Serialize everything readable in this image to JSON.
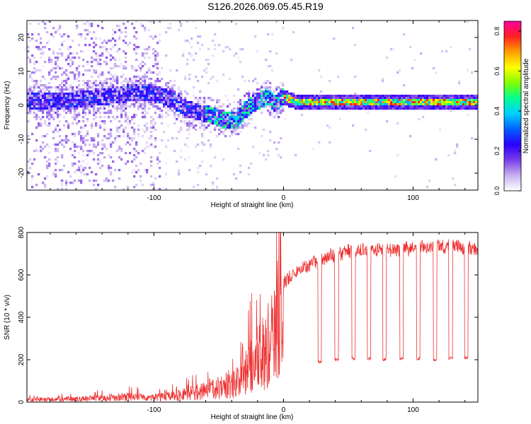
{
  "title": "S126.2026.069.05.45.R19",
  "chart_data": [
    {
      "type": "heatmap",
      "xlabel": "Height of straight line (km)",
      "ylabel": "Frequency (Hz)",
      "xlim": [
        -198,
        150
      ],
      "ylim": [
        -25,
        25
      ],
      "xticks": [
        -100,
        0,
        100
      ],
      "yticks": [
        -20,
        -10,
        0,
        10,
        20
      ],
      "colorbar": {
        "label": "Normalized spectral amplitude",
        "range": [
          0.0,
          0.85
        ],
        "ticks": [
          0.0,
          0.2,
          0.4,
          0.6,
          0.8
        ],
        "tick_labels": [
          "0.0",
          "0.2",
          "0.4",
          "0.6",
          "0.8"
        ],
        "colors": [
          "#ffffff",
          "#c8b0f0",
          "#7a3ce8",
          "#2a00ff",
          "#0060ff",
          "#00d0ff",
          "#00ff90",
          "#80ff00",
          "#ffff00",
          "#ffa000",
          "#ff2020",
          "#ff00a0"
        ]
      },
      "ridge": [
        {
          "x": -185,
          "y": 1.0
        },
        {
          "x": -160,
          "y": 1.5
        },
        {
          "x": -140,
          "y": 2.5
        },
        {
          "x": -120,
          "y": 3.5
        },
        {
          "x": -105,
          "y": 4.0
        },
        {
          "x": -95,
          "y": 3.0
        },
        {
          "x": -85,
          "y": 1.5
        },
        {
          "x": -75,
          "y": -1.0
        },
        {
          "x": -65,
          "y": -2.0
        },
        {
          "x": -55,
          "y": -3.0
        },
        {
          "x": -45,
          "y": -4.5
        },
        {
          "x": -35,
          "y": -4.0
        },
        {
          "x": -30,
          "y": -1.5
        },
        {
          "x": -25,
          "y": 0.0
        },
        {
          "x": -18,
          "y": 1.5
        },
        {
          "x": -12,
          "y": 2.5
        },
        {
          "x": -6,
          "y": 0.5
        },
        {
          "x": 0,
          "y": 2.5
        },
        {
          "x": 10,
          "y": 1.0
        },
        {
          "x": 50,
          "y": 1.0
        },
        {
          "x": 100,
          "y": 1.0
        },
        {
          "x": 150,
          "y": 1.0
        }
      ]
    },
    {
      "type": "line",
      "xlabel": "Height of straight line (km)",
      "ylabel": "SNR (10 * v/v)",
      "xlim": [
        -198,
        150
      ],
      "ylim": [
        0,
        800
      ],
      "xticks": [
        -100,
        0,
        100
      ],
      "yticks": [
        0,
        200,
        400,
        600,
        800
      ],
      "series": [
        {
          "name": "SNR",
          "color": "#ee3333",
          "envelope": [
            {
              "x": -198,
              "y": 20
            },
            {
              "x": -160,
              "y": 25
            },
            {
              "x": -140,
              "y": 35
            },
            {
              "x": -120,
              "y": 45
            },
            {
              "x": -100,
              "y": 40
            },
            {
              "x": -85,
              "y": 50
            },
            {
              "x": -70,
              "y": 80
            },
            {
              "x": -55,
              "y": 110
            },
            {
              "x": -40,
              "y": 150
            },
            {
              "x": -30,
              "y": 200
            },
            {
              "x": -22,
              "y": 350
            },
            {
              "x": -15,
              "y": 430
            },
            {
              "x": -5,
              "y": 560
            },
            {
              "x": 5,
              "y": 620
            },
            {
              "x": 15,
              "y": 660
            },
            {
              "x": 25,
              "y": 690
            },
            {
              "x": 35,
              "y": 720
            },
            {
              "x": 50,
              "y": 740
            },
            {
              "x": 75,
              "y": 745
            },
            {
              "x": 100,
              "y": 755
            },
            {
              "x": 130,
              "y": 765
            },
            {
              "x": 150,
              "y": 750
            }
          ],
          "dips": [
            {
              "x": 28,
              "y": 190
            },
            {
              "x": 41,
              "y": 200
            },
            {
              "x": 54,
              "y": 205
            },
            {
              "x": 66,
              "y": 205
            },
            {
              "x": 78,
              "y": 200
            },
            {
              "x": 91,
              "y": 205
            },
            {
              "x": 104,
              "y": 205
            },
            {
              "x": 117,
              "y": 200
            },
            {
              "x": 129,
              "y": 205
            },
            {
              "x": 141,
              "y": 210
            }
          ]
        }
      ]
    }
  ]
}
